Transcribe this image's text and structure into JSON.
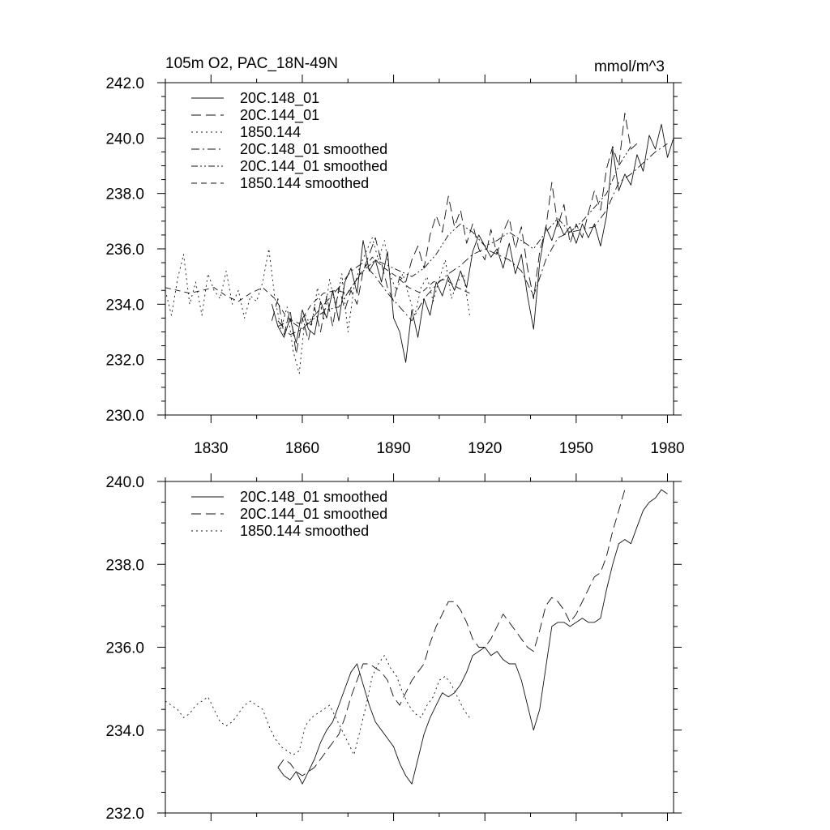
{
  "chart_data": [
    {
      "type": "line",
      "title": "105m O2, PAC_18N-49N",
      "units": "mmol/m^3",
      "xlabel": "",
      "ylabel": "",
      "xlim": [
        1815,
        1982
      ],
      "ylim": [
        230,
        242
      ],
      "x_ticks": [
        1830,
        1860,
        1890,
        1920,
        1950,
        1980
      ],
      "y_ticks": [
        230,
        232,
        234,
        236,
        238,
        240,
        242
      ],
      "y_tick_labels": [
        "230.0",
        "232.0",
        "234.0",
        "236.0",
        "238.0",
        "240.0",
        "242.0"
      ],
      "grid": false,
      "legend_position": "top-left",
      "series": [
        {
          "name": "20C.148_01",
          "dash": "solid",
          "x": [
            1850,
            1852,
            1854,
            1856,
            1858,
            1860,
            1862,
            1864,
            1866,
            1868,
            1870,
            1872,
            1874,
            1876,
            1878,
            1880,
            1882,
            1884,
            1886,
            1888,
            1890,
            1892,
            1894,
            1896,
            1898,
            1900,
            1902,
            1904,
            1906,
            1908,
            1910,
            1912,
            1914,
            1916,
            1918,
            1920,
            1922,
            1924,
            1926,
            1928,
            1930,
            1932,
            1934,
            1936,
            1938,
            1940,
            1942,
            1944,
            1946,
            1948,
            1950,
            1952,
            1954,
            1956,
            1958,
            1960,
            1962,
            1964,
            1966,
            1968,
            1970,
            1972,
            1974,
            1976,
            1978,
            1980,
            1982
          ],
          "y": [
            234.0,
            233.2,
            232.8,
            233.5,
            232.6,
            233.8,
            233.1,
            232.9,
            234.1,
            233.5,
            234.5,
            233.4,
            234.8,
            235.3,
            234.4,
            236.3,
            235.2,
            235.6,
            234.8,
            235.9,
            233.5,
            233.0,
            231.9,
            233.8,
            232.8,
            234.2,
            233.6,
            234.8,
            234.3,
            235.0,
            234.5,
            235.2,
            234.6,
            235.9,
            236.5,
            236.1,
            235.7,
            236.0,
            235.3,
            236.2,
            235.1,
            235.8,
            234.3,
            233.1,
            235.5,
            236.8,
            236.3,
            237.0,
            236.5,
            236.8,
            236.2,
            236.9,
            236.4,
            236.9,
            236.1,
            237.2,
            239.6,
            238.1,
            238.7,
            238.3,
            239.4,
            238.8,
            240.1,
            239.6,
            240.5,
            239.3,
            240.0
          ]
        },
        {
          "name": "20C.144_01",
          "dash": "long-dash",
          "x": [
            1850,
            1852,
            1854,
            1856,
            1858,
            1860,
            1862,
            1864,
            1866,
            1868,
            1870,
            1872,
            1874,
            1876,
            1878,
            1880,
            1882,
            1884,
            1886,
            1888,
            1890,
            1892,
            1894,
            1896,
            1898,
            1900,
            1902,
            1904,
            1906,
            1908,
            1910,
            1912,
            1914,
            1916,
            1918,
            1920,
            1922,
            1924,
            1926,
            1928,
            1930,
            1932,
            1934,
            1936,
            1938,
            1940,
            1942,
            1944,
            1946,
            1948,
            1950,
            1952,
            1954,
            1956,
            1958,
            1960,
            1962,
            1964,
            1966,
            1968,
            1970
          ],
          "y": [
            233.4,
            234.2,
            232.9,
            233.8,
            232.2,
            233.5,
            232.7,
            233.9,
            233.0,
            234.3,
            233.2,
            234.6,
            233.8,
            234.5,
            234.0,
            235.2,
            235.8,
            236.4,
            235.5,
            234.6,
            234.1,
            235.0,
            234.8,
            235.6,
            236.1,
            235.3,
            236.5,
            237.2,
            236.6,
            237.9,
            236.8,
            237.4,
            236.2,
            236.9,
            236.0,
            235.6,
            236.7,
            235.8,
            236.6,
            237.1,
            236.0,
            236.8,
            235.3,
            234.2,
            235.9,
            236.7,
            238.4,
            236.8,
            237.6,
            236.2,
            236.9,
            236.4,
            237.3,
            238.1,
            237.4,
            238.9,
            239.7,
            239.0,
            240.9,
            239.6,
            239.8
          ]
        },
        {
          "name": "1850.144",
          "dash": "dot",
          "x": [
            1815,
            1817,
            1819,
            1821,
            1823,
            1825,
            1827,
            1829,
            1831,
            1833,
            1835,
            1837,
            1839,
            1841,
            1843,
            1845,
            1847,
            1849,
            1851,
            1853,
            1855,
            1857,
            1859,
            1861,
            1863,
            1865,
            1867,
            1869,
            1871,
            1873,
            1875,
            1877,
            1879,
            1881,
            1883,
            1885,
            1887,
            1889,
            1891,
            1893,
            1895,
            1897,
            1899,
            1901,
            1903,
            1905,
            1907,
            1909,
            1911,
            1913,
            1915
          ],
          "y": [
            234.5,
            233.6,
            234.9,
            235.8,
            234.0,
            234.8,
            233.6,
            235.1,
            234.5,
            234.2,
            235.2,
            234.0,
            234.5,
            233.5,
            234.3,
            234.1,
            234.8,
            236.0,
            234.2,
            233.1,
            233.9,
            232.3,
            231.5,
            233.6,
            233.2,
            234.6,
            233.4,
            234.9,
            233.9,
            235.1,
            233.0,
            234.6,
            235.4,
            235.9,
            236.4,
            235.6,
            236.3,
            235.0,
            234.5,
            235.1,
            234.3,
            233.6,
            234.6,
            235.0,
            234.1,
            234.9,
            235.6,
            234.2,
            234.8,
            235.1,
            233.6
          ]
        },
        {
          "name": "20C.148_01 smoothed",
          "dash": "dash-dot",
          "x": [
            1852,
            1856,
            1860,
            1864,
            1868,
            1872,
            1876,
            1880,
            1884,
            1888,
            1892,
            1896,
            1900,
            1904,
            1908,
            1912,
            1916,
            1920,
            1924,
            1928,
            1932,
            1936,
            1940,
            1944,
            1948,
            1952,
            1956,
            1960,
            1964,
            1968,
            1972,
            1976,
            1980
          ],
          "y": [
            233.4,
            232.9,
            233.1,
            233.6,
            234.1,
            234.6,
            235.2,
            235.5,
            235.0,
            234.4,
            233.9,
            233.4,
            234.2,
            234.7,
            235.1,
            235.4,
            235.8,
            236.0,
            235.8,
            235.6,
            235.2,
            234.3,
            235.6,
            236.4,
            236.6,
            236.7,
            236.8,
            237.4,
            238.4,
            238.7,
            239.1,
            239.5,
            239.8
          ]
        },
        {
          "name": "20C.144_01 smoothed",
          "dash": "dash-dot-dot",
          "x": [
            1852,
            1856,
            1860,
            1864,
            1868,
            1872,
            1876,
            1880,
            1884,
            1888,
            1892,
            1896,
            1900,
            1904,
            1908,
            1912,
            1916,
            1920,
            1924,
            1928,
            1932,
            1936,
            1940,
            1944,
            1948,
            1952,
            1956,
            1960,
            1964,
            1968
          ],
          "y": [
            233.2,
            233.4,
            233.1,
            233.5,
            233.8,
            233.9,
            234.6,
            235.2,
            235.6,
            235.4,
            235.2,
            235.0,
            235.3,
            235.8,
            236.5,
            236.9,
            236.6,
            236.1,
            236.3,
            236.6,
            236.3,
            236.0,
            236.6,
            237.1,
            236.6,
            237.0,
            237.5,
            238.0,
            239.0,
            239.7
          ]
        },
        {
          "name": "1850.144 smoothed",
          "dash": "medium-dash",
          "x": [
            1815,
            1819,
            1823,
            1827,
            1831,
            1835,
            1839,
            1843,
            1847,
            1851,
            1855,
            1859,
            1863,
            1867,
            1871,
            1875,
            1879,
            1883,
            1887,
            1891,
            1895,
            1899,
            1903,
            1907,
            1911,
            1915
          ],
          "y": [
            234.6,
            234.5,
            234.4,
            234.5,
            234.6,
            234.3,
            234.1,
            234.4,
            234.6,
            234.2,
            233.5,
            233.3,
            234.0,
            234.4,
            234.5,
            234.4,
            235.1,
            235.7,
            235.3,
            235.0,
            234.6,
            234.4,
            234.8,
            234.9,
            234.6,
            234.4
          ]
        }
      ]
    },
    {
      "type": "line",
      "title": "",
      "xlabel": "",
      "ylabel": "",
      "xlim": [
        1815,
        1982
      ],
      "ylim": [
        232,
        240
      ],
      "x_ticks": [
        1830,
        1860,
        1890,
        1920,
        1950,
        1980
      ],
      "y_ticks": [
        232,
        234,
        236,
        238,
        240
      ],
      "y_tick_labels": [
        "232.0",
        "234.0",
        "236.0",
        "238.0",
        "240.0"
      ],
      "grid": false,
      "legend_position": "top-left",
      "series": [
        {
          "name": "20C.148_01 smoothed",
          "dash": "solid",
          "x": [
            1852,
            1854,
            1856,
            1858,
            1860,
            1862,
            1864,
            1866,
            1868,
            1870,
            1872,
            1874,
            1876,
            1878,
            1880,
            1882,
            1884,
            1886,
            1888,
            1890,
            1892,
            1894,
            1896,
            1898,
            1900,
            1902,
            1904,
            1906,
            1908,
            1910,
            1912,
            1914,
            1916,
            1918,
            1920,
            1922,
            1924,
            1926,
            1928,
            1930,
            1932,
            1934,
            1936,
            1938,
            1940,
            1942,
            1944,
            1946,
            1948,
            1950,
            1952,
            1954,
            1956,
            1958,
            1960,
            1962,
            1964,
            1966,
            1968,
            1970,
            1972,
            1974,
            1976,
            1978,
            1980
          ],
          "y": [
            233.1,
            232.9,
            232.8,
            233.0,
            232.7,
            233.0,
            233.3,
            233.7,
            234.0,
            234.2,
            234.6,
            235.0,
            235.4,
            235.6,
            235.1,
            234.6,
            234.2,
            234.0,
            233.8,
            233.6,
            233.2,
            232.9,
            232.7,
            233.3,
            233.9,
            234.3,
            234.6,
            234.9,
            234.8,
            234.9,
            235.1,
            235.4,
            235.8,
            235.9,
            236.0,
            235.8,
            235.9,
            235.7,
            235.6,
            235.6,
            235.2,
            234.6,
            234.0,
            234.5,
            235.5,
            236.5,
            236.6,
            236.6,
            236.5,
            236.6,
            236.7,
            236.6,
            236.6,
            236.7,
            237.4,
            238.0,
            238.5,
            238.6,
            238.5,
            238.9,
            239.3,
            239.5,
            239.6,
            239.8,
            239.7
          ]
        },
        {
          "name": "20C.144_01 smoothed",
          "dash": "long-dash",
          "x": [
            1852,
            1854,
            1856,
            1858,
            1860,
            1862,
            1864,
            1866,
            1868,
            1870,
            1872,
            1874,
            1876,
            1878,
            1880,
            1882,
            1884,
            1886,
            1888,
            1890,
            1892,
            1894,
            1896,
            1898,
            1900,
            1902,
            1904,
            1906,
            1908,
            1910,
            1912,
            1914,
            1916,
            1918,
            1920,
            1922,
            1924,
            1926,
            1928,
            1930,
            1932,
            1934,
            1936,
            1938,
            1940,
            1942,
            1944,
            1946,
            1948,
            1950,
            1952,
            1954,
            1956,
            1958,
            1960,
            1962,
            1964,
            1966
          ],
          "y": [
            233.1,
            233.3,
            233.2,
            233.0,
            232.9,
            233.0,
            233.1,
            233.3,
            233.5,
            233.7,
            233.9,
            234.3,
            234.8,
            235.2,
            235.6,
            235.6,
            235.5,
            235.4,
            235.2,
            234.8,
            234.6,
            234.9,
            235.2,
            235.4,
            235.6,
            236.1,
            236.5,
            236.8,
            237.1,
            237.1,
            236.9,
            236.6,
            236.2,
            236.0,
            236.0,
            236.2,
            236.5,
            236.8,
            236.6,
            236.4,
            236.2,
            236.0,
            235.9,
            236.4,
            237.0,
            237.2,
            237.1,
            236.9,
            236.6,
            236.8,
            237.1,
            237.4,
            237.7,
            237.8,
            238.2,
            238.8,
            239.3,
            239.8
          ]
        },
        {
          "name": "1850.144 smoothed",
          "dash": "dot",
          "x": [
            1815,
            1817,
            1819,
            1821,
            1823,
            1825,
            1827,
            1829,
            1831,
            1833,
            1835,
            1837,
            1839,
            1841,
            1843,
            1845,
            1847,
            1849,
            1851,
            1853,
            1855,
            1857,
            1859,
            1861,
            1863,
            1865,
            1867,
            1869,
            1871,
            1873,
            1875,
            1877,
            1879,
            1881,
            1883,
            1885,
            1887,
            1889,
            1891,
            1893,
            1895,
            1897,
            1899,
            1901,
            1903,
            1905,
            1907,
            1909,
            1911,
            1913,
            1915
          ],
          "y": [
            234.7,
            234.6,
            234.5,
            234.3,
            234.4,
            234.6,
            234.7,
            234.8,
            234.5,
            234.2,
            234.1,
            234.2,
            234.4,
            234.6,
            234.7,
            234.6,
            234.5,
            234.1,
            233.8,
            233.6,
            233.5,
            233.4,
            233.5,
            234.1,
            234.3,
            234.4,
            234.5,
            234.6,
            234.3,
            234.0,
            233.7,
            233.4,
            234.0,
            234.6,
            235.3,
            235.6,
            235.8,
            235.5,
            235.3,
            234.9,
            234.6,
            234.4,
            234.3,
            234.6,
            234.8,
            235.2,
            235.3,
            235.1,
            234.8,
            234.5,
            234.3
          ]
        }
      ]
    }
  ]
}
